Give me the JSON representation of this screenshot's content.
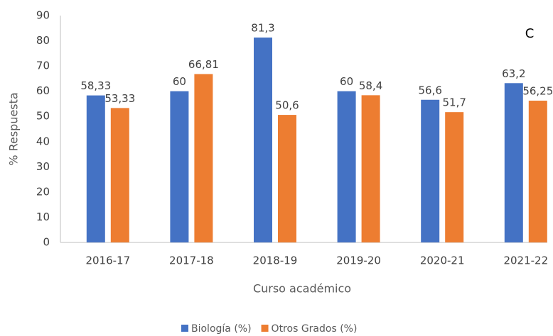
{
  "chart_data": {
    "type": "bar",
    "annotation": "C",
    "x_label": "Curso académico",
    "y_label": "% Respuesta",
    "categories": [
      "2016-17",
      "2017-18",
      "2018-19",
      "2019-20",
      "2020-21",
      "2021-22"
    ],
    "series": [
      {
        "name": "Biología (%)",
        "color": "#4472c4",
        "values": [
          58.33,
          60,
          81.3,
          60,
          56.6,
          63.2
        ],
        "value_labels": [
          "58,33",
          "60",
          "81,3",
          "60",
          "56,6",
          "63,2"
        ]
      },
      {
        "name": "Otros Grados (%)",
        "color": "#ed7d31",
        "values": [
          53.33,
          66.81,
          50.6,
          58.4,
          51.7,
          56.25
        ],
        "value_labels": [
          "53,33",
          "66,81",
          "50,6",
          "58,4",
          "51,7",
          "56,25"
        ]
      }
    ],
    "ylim": [
      0,
      90
    ],
    "yticks": [
      0,
      10,
      20,
      30,
      40,
      50,
      60,
      70,
      80,
      90
    ],
    "grid": false,
    "legend": "bottom"
  }
}
